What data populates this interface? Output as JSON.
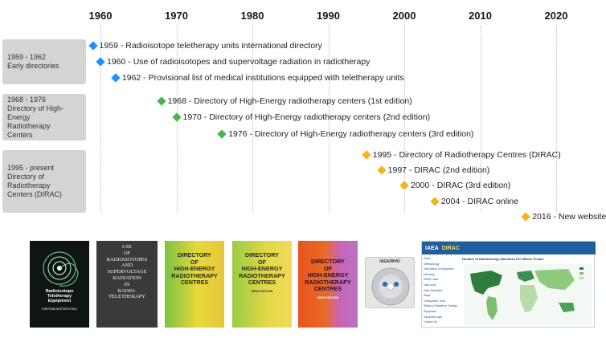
{
  "timeline": {
    "years": [
      "1960",
      "1970",
      "1980",
      "1990",
      "2000",
      "2010",
      "2020"
    ],
    "periods": [
      {
        "range": "1959 - 1962",
        "name": "Early directories"
      },
      {
        "range": "1968 - 1976",
        "name": "Directory of High-Energy Radiotherapy Centers"
      },
      {
        "range": "1995 - present",
        "name": "Directory of Radiotherapy Centers (DIRAC)"
      }
    ],
    "events": [
      {
        "year": 1959,
        "label": "1959 - Radioisotope teletherapy units international directory",
        "color": "#1e90ff"
      },
      {
        "year": 1960,
        "label": "1960 - Use of radioisotopes and supervoltage radiation in radiotherapy",
        "color": "#1e90ff"
      },
      {
        "year": 1962,
        "label": "1962 - Provisional list of medical institutions equipped with teletherapy units",
        "color": "#1e90ff"
      },
      {
        "year": 1968,
        "label": "1968 - Directory of High-Energy radiotherapy centers (1st edition)",
        "color": "#45b649"
      },
      {
        "year": 1970,
        "label": "1970 - Directory of High-Energy radiotherapy centers (2nd edition)",
        "color": "#45b649"
      },
      {
        "year": 1976,
        "label": "1976 - Directory of High-Energy radiotherapy centers (3rd edition)",
        "color": "#45b649"
      },
      {
        "year": 1995,
        "label": "1995 - Directory of Radiotherapy Centres (DIRAC)",
        "color": "#f3b418"
      },
      {
        "year": 1997,
        "label": "1997 - DIRAC (2nd edition)",
        "color": "#f3b418"
      },
      {
        "year": 2000,
        "label": "2000 - DIRAC (3rd edition)",
        "color": "#f3b418"
      },
      {
        "year": 2004,
        "label": "2004 - DIRAC online",
        "color": "#f3b418"
      },
      {
        "year": 2016,
        "label": "2016 - New website",
        "color": "#f3b418"
      }
    ]
  },
  "covers": {
    "c1": {
      "title": "Radioisotope\nTeletherapy\nEquipment",
      "subtitle": "International Directory"
    },
    "c2": {
      "title": "USE\nOF\nRADIOISOTOPES\nAND\nSUPERVOLTAGE\nRADIATION\nIN\nRADIO-\nTELETHERAPY"
    },
    "c3": {
      "title": "DIRECTORY\nOF\nHIGH-ENERGY\nRADIOTHERAPY\nCENTRES"
    },
    "c4": {
      "title": "DIRECTORY\nOF\nHIGH-ENERGY\nRADIOTHERAPY\nCENTRES",
      "subtitle": "NEW EDITION"
    },
    "c5": {
      "title": "DIRECTORY\nOF\nHIGH-ENERGY\nRADIOTHERAPY\nCENTRES",
      "subtitle": "NEW EDITION"
    },
    "cd": {
      "label": "IAEA/WHO"
    },
    "web": {
      "brand": "IAEA",
      "site": "DIRAC",
      "chart_title": "Number of Radiotherapy Machines Per Million People",
      "nav": [
        "Home",
        "Methodology",
        "Description of equipment",
        "Directory",
        "DIRAC data",
        "Data entry",
        "Data Extraction",
        "Maps",
        "Comparison Tools",
        "Status of Radiation Therapy Equipment",
        "Equipment Age",
        "Contact Us"
      ]
    }
  },
  "colors": {
    "blue": "#1e90ff",
    "green": "#45b649",
    "yellow": "#f3b418",
    "period_bg": "#d4d4d4"
  }
}
